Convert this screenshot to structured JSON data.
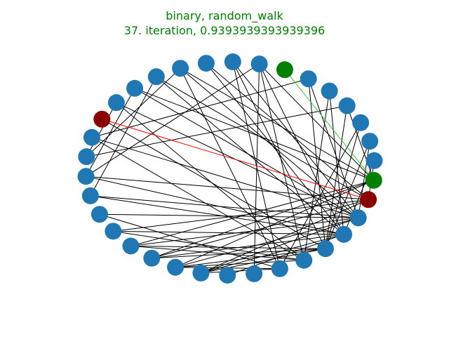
{
  "title": {
    "line1": "binary, random_walk",
    "line2": "37. iteration, 0.9393939393939396",
    "color": "#008000"
  },
  "graph": {
    "layout": "circular",
    "node_count": 34,
    "default_node_color": "#1f77b4",
    "default_edge_color": "#000000",
    "highlight_nodes": {
      "0": "#008000",
      "1": "#8b0000",
      "19": "#8b0000",
      "27": "#008000"
    },
    "highlight_edges": [
      {
        "source": 1,
        "target": 19,
        "color": "#ff0000"
      },
      {
        "source": 0,
        "target": 27,
        "color": "#32cd32"
      }
    ],
    "edges": [
      [
        9,
        2
      ],
      [
        9,
        3
      ],
      [
        9,
        4
      ],
      [
        9,
        6
      ],
      [
        9,
        1
      ],
      [
        10,
        2
      ],
      [
        10,
        4
      ],
      [
        10,
        5
      ],
      [
        10,
        6
      ],
      [
        10,
        0
      ],
      [
        11,
        3
      ],
      [
        11,
        1
      ],
      [
        11,
        4
      ],
      [
        11,
        0
      ],
      [
        12,
        4
      ],
      [
        12,
        2
      ],
      [
        12,
        5
      ],
      [
        12,
        0
      ],
      [
        13,
        1
      ],
      [
        13,
        3
      ],
      [
        13,
        5
      ],
      [
        14,
        2
      ],
      [
        14,
        6
      ],
      [
        15,
        22
      ],
      [
        15,
        2
      ],
      [
        15,
        3
      ],
      [
        16,
        21
      ],
      [
        16,
        26
      ],
      [
        16,
        3
      ],
      [
        16,
        1
      ],
      [
        17,
        20
      ],
      [
        17,
        23
      ],
      [
        17,
        30
      ],
      [
        18,
        5
      ],
      [
        18,
        28
      ],
      [
        18,
        2
      ],
      [
        26,
        5
      ],
      [
        26,
        3
      ],
      [
        26,
        7
      ],
      [
        26,
        0
      ],
      [
        25,
        6
      ],
      [
        25,
        2
      ],
      [
        25,
        4
      ],
      [
        24,
        1
      ],
      [
        24,
        3
      ],
      [
        23,
        0
      ],
      [
        23,
        2
      ],
      [
        23,
        6
      ],
      [
        22,
        3
      ],
      [
        22,
        1
      ],
      [
        21,
        0
      ],
      [
        21,
        2
      ],
      [
        28,
        2
      ],
      [
        28,
        4
      ],
      [
        29,
        5
      ],
      [
        29,
        3
      ],
      [
        30,
        4
      ],
      [
        30,
        0
      ],
      [
        31,
        6
      ],
      [
        31,
        4
      ],
      [
        32,
        4
      ],
      [
        32,
        2
      ],
      [
        33,
        1
      ],
      [
        33,
        3
      ],
      [
        20,
        5
      ],
      [
        20,
        2
      ],
      [
        19,
        4
      ],
      [
        8,
        3
      ]
    ]
  }
}
